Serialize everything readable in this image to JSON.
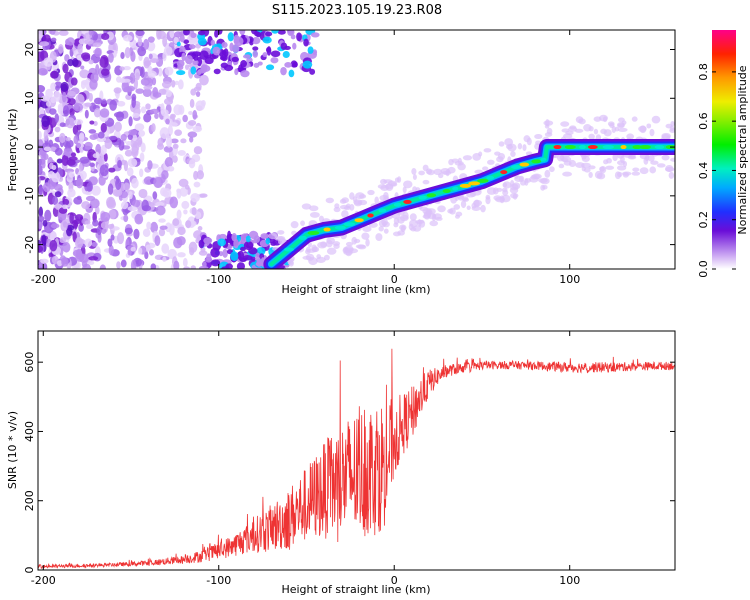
{
  "title": "S115.2023.105.19.23.R08",
  "colors": {
    "snr_line": "#ee3333",
    "ridge_core": "#ff2222",
    "noise": "#7a1fd0"
  },
  "chart_data": [
    {
      "type": "heatmap",
      "title": "S115.2023.105.19.23.R08",
      "xlabel": "Height of straight line (km)",
      "ylabel": "Frequency (Hz)",
      "xlim": [
        -203,
        160
      ],
      "ylim": [
        -25,
        24
      ],
      "xticks": [
        -200,
        -100,
        0,
        100
      ],
      "yticks": [
        -20,
        -10,
        0,
        10,
        20
      ],
      "colorbar": {
        "label": "Normalized spectral amplitude",
        "range": [
          0.0,
          0.97
        ],
        "ticks": [
          0.0,
          0.2,
          0.4,
          0.6,
          0.8
        ],
        "tick_labels": [
          "0.0",
          "0.2",
          "0.4",
          "0.6",
          "0.8"
        ],
        "colormap": "rainbow (white-violet-blue-cyan-green-yellow-red-magenta)"
      },
      "ridge": {
        "x": [
          -70,
          -50,
          -40,
          -30,
          -20,
          -10,
          0,
          10,
          20,
          30,
          40,
          50,
          60,
          70,
          80,
          86,
          87,
          100,
          120,
          140,
          160
        ],
        "frequency": [
          -24,
          -18,
          -17,
          -16.5,
          -15,
          -13.5,
          -12,
          -11,
          -10,
          -9,
          -8,
          -7,
          -5.5,
          -4,
          -3,
          -2.5,
          0,
          0,
          0,
          0,
          0
        ]
      },
      "noise_region": "diffuse violet speckle for x < -110 across all frequencies, fading toward x = -120"
    },
    {
      "type": "line",
      "xlabel": "Height of straight line (km)",
      "ylabel": "SNR (10 * v/v)",
      "xlim": [
        -203,
        160
      ],
      "ylim": [
        0,
        690
      ],
      "xticks": [
        -200,
        -100,
        0,
        100
      ],
      "yticks": [
        0,
        200,
        400,
        600
      ],
      "grid": false,
      "series": [
        {
          "x": [
            -203,
            -180,
            -160,
            -140,
            -120,
            -110,
            -100,
            -90,
            -80,
            -70,
            -60,
            -50,
            -40,
            -30,
            -20,
            -10,
            -5,
            0,
            5,
            10,
            15,
            20,
            25,
            30,
            40,
            50,
            60,
            80,
            100,
            120,
            140,
            160
          ],
          "y": [
            10,
            12,
            15,
            20,
            30,
            40,
            55,
            75,
            100,
            120,
            150,
            190,
            230,
            260,
            280,
            300,
            310,
            380,
            420,
            450,
            500,
            540,
            560,
            575,
            585,
            590,
            592,
            590,
            585,
            585,
            588,
            590
          ],
          "noise_amplitude": [
            5,
            5,
            5,
            8,
            12,
            18,
            25,
            35,
            50,
            70,
            90,
            110,
            140,
            170,
            190,
            200,
            180,
            120,
            90,
            80,
            60,
            40,
            25,
            18,
            15,
            12,
            12,
            12,
            15,
            15,
            12,
            12
          ]
        }
      ]
    }
  ]
}
